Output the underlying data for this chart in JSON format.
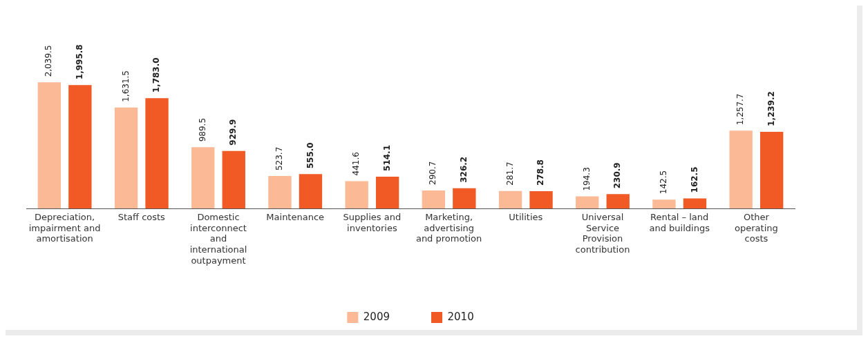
{
  "chart_data": {
    "type": "bar",
    "categories": [
      "Depreciation, impairment and amortisation",
      "Staff costs",
      "Domestic interconnect and international outpayment",
      "Maintenance",
      "Supplies and inventories",
      "Marketing, advertising and promotion",
      "Utilities",
      "Universal Service Provision contribution",
      "Rental – land and buildings",
      "Other operating costs"
    ],
    "series": [
      {
        "name": "2009",
        "color": "#fbb995",
        "values": [
          2039.5,
          1631.5,
          989.5,
          523.7,
          441.6,
          290.7,
          281.7,
          194.3,
          142.5,
          1257.7
        ],
        "value_labels": [
          "2,039.5",
          "1,631.5",
          "989.5",
          "523.7",
          "441.6",
          "290.7",
          "281.7",
          "194.3",
          "142.5",
          "1,257.7"
        ]
      },
      {
        "name": "2010",
        "color": "#f15a24",
        "values": [
          1995.8,
          1783.0,
          929.9,
          555.0,
          514.1,
          326.2,
          278.8,
          230.9,
          162.5,
          1239.2
        ],
        "value_labels": [
          "1,995.8",
          "1,783.0",
          "929.9",
          "555.0",
          "514.1",
          "326.2",
          "278.8",
          "230.9",
          "162.5",
          "1,239.2"
        ]
      }
    ],
    "legend": "bottom",
    "grid": false
  }
}
